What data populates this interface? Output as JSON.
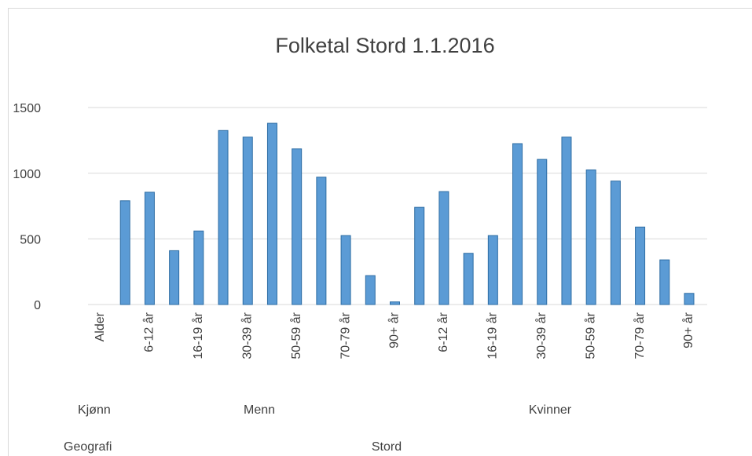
{
  "chart_data": {
    "type": "bar",
    "title": "Folketal Stord 1.1.2016",
    "categories": [
      "Alder",
      null,
      "6-12 år",
      null,
      "16-19 år",
      null,
      "30-39 år",
      null,
      "50-59 år",
      null,
      "70-79 år",
      null,
      "90+ år",
      null,
      "6-12 år",
      null,
      "16-19 år",
      null,
      "30-39 år",
      null,
      "50-59 år",
      null,
      "70-79 år",
      null,
      "90+ år"
    ],
    "values": [
      null,
      790,
      855,
      410,
      560,
      1325,
      1275,
      1380,
      1185,
      970,
      525,
      220,
      20,
      740,
      860,
      390,
      525,
      1225,
      1105,
      1275,
      1025,
      940,
      590,
      340,
      85
    ],
    "color": "#5b9bd5",
    "ylim": [
      0,
      1500
    ],
    "yticks": [
      0,
      500,
      1000,
      1500
    ],
    "grid": true,
    "row_headers": [
      "Kjønn",
      "Geografi"
    ],
    "gender_groups": [
      "Menn",
      "Kvinner"
    ],
    "geography": "Stord"
  }
}
